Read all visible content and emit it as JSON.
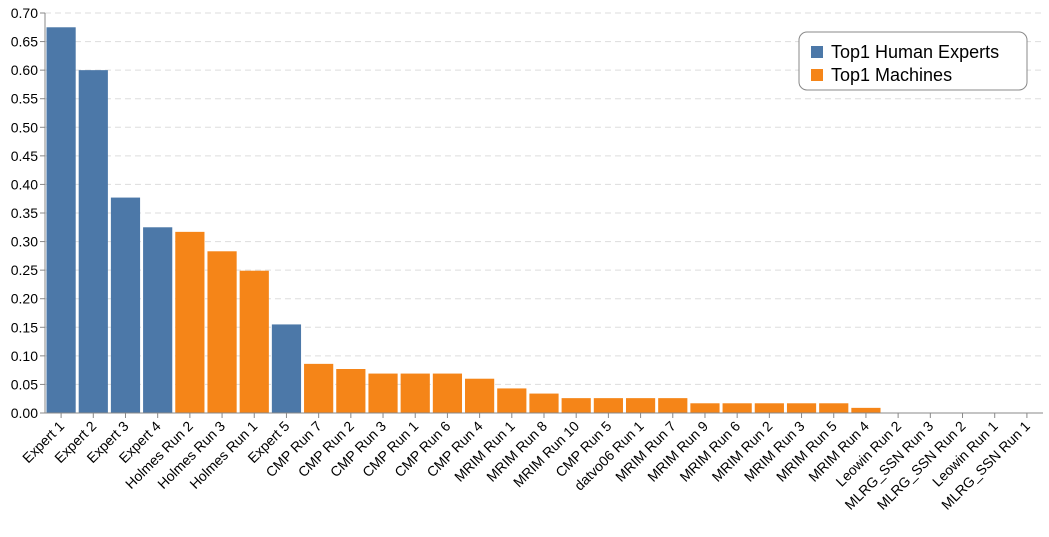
{
  "chart_data": {
    "type": "bar",
    "title": "",
    "xlabel": "",
    "ylabel": "",
    "ylim": [
      0,
      0.7
    ],
    "yticks": [
      "0.00",
      "0.05",
      "0.10",
      "0.15",
      "0.20",
      "0.25",
      "0.30",
      "0.35",
      "0.40",
      "0.45",
      "0.50",
      "0.55",
      "0.60",
      "0.65",
      "0.70"
    ],
    "grid": "horizontal dashed",
    "legend_position": "top-right",
    "legend": [
      {
        "label": "Top1 Human Experts",
        "color": "#4c78a8"
      },
      {
        "label": "Top1 Machines",
        "color": "#f58518"
      }
    ],
    "categories": [
      "Expert 1",
      "Expert 2",
      "Expert 3",
      "Expert 4",
      "Holmes Run 2",
      "Holmes Run 3",
      "Holmes Run 1",
      "Expert 5",
      "CMP Run 7",
      "CMP Run 2",
      "CMP Run 3",
      "CMP Run 1",
      "CMP Run 6",
      "CMP Run 4",
      "MRIM Run 1",
      "MRIM Run 8",
      "MRIM Run 10",
      "CMP Run 5",
      "datvo06 Run 1",
      "MRIM Run 7",
      "MRIM Run 9",
      "MRIM Run 6",
      "MRIM Run 2",
      "MRIM Run 3",
      "MRIM Run 5",
      "MRIM Run 4",
      "Leowin Run 2",
      "MLRG_SSN Run 3",
      "MLRG_SSN Run 2",
      "Leowin Run 1",
      "MLRG_SSN Run 1"
    ],
    "values": [
      0.675,
      0.6,
      0.377,
      0.325,
      0.317,
      0.283,
      0.249,
      0.155,
      0.086,
      0.077,
      0.069,
      0.069,
      0.069,
      0.06,
      0.043,
      0.034,
      0.026,
      0.026,
      0.026,
      0.026,
      0.017,
      0.017,
      0.017,
      0.017,
      0.017,
      0.009,
      0.0,
      0.0,
      0.0,
      0.0,
      0.0
    ],
    "groups": [
      "Top1 Human Experts",
      "Top1 Human Experts",
      "Top1 Human Experts",
      "Top1 Human Experts",
      "Top1 Machines",
      "Top1 Machines",
      "Top1 Machines",
      "Top1 Human Experts",
      "Top1 Machines",
      "Top1 Machines",
      "Top1 Machines",
      "Top1 Machines",
      "Top1 Machines",
      "Top1 Machines",
      "Top1 Machines",
      "Top1 Machines",
      "Top1 Machines",
      "Top1 Machines",
      "Top1 Machines",
      "Top1 Machines",
      "Top1 Machines",
      "Top1 Machines",
      "Top1 Machines",
      "Top1 Machines",
      "Top1 Machines",
      "Top1 Machines",
      "Top1 Machines",
      "Top1 Machines",
      "Top1 Machines",
      "Top1 Machines",
      "Top1 Machines"
    ]
  }
}
